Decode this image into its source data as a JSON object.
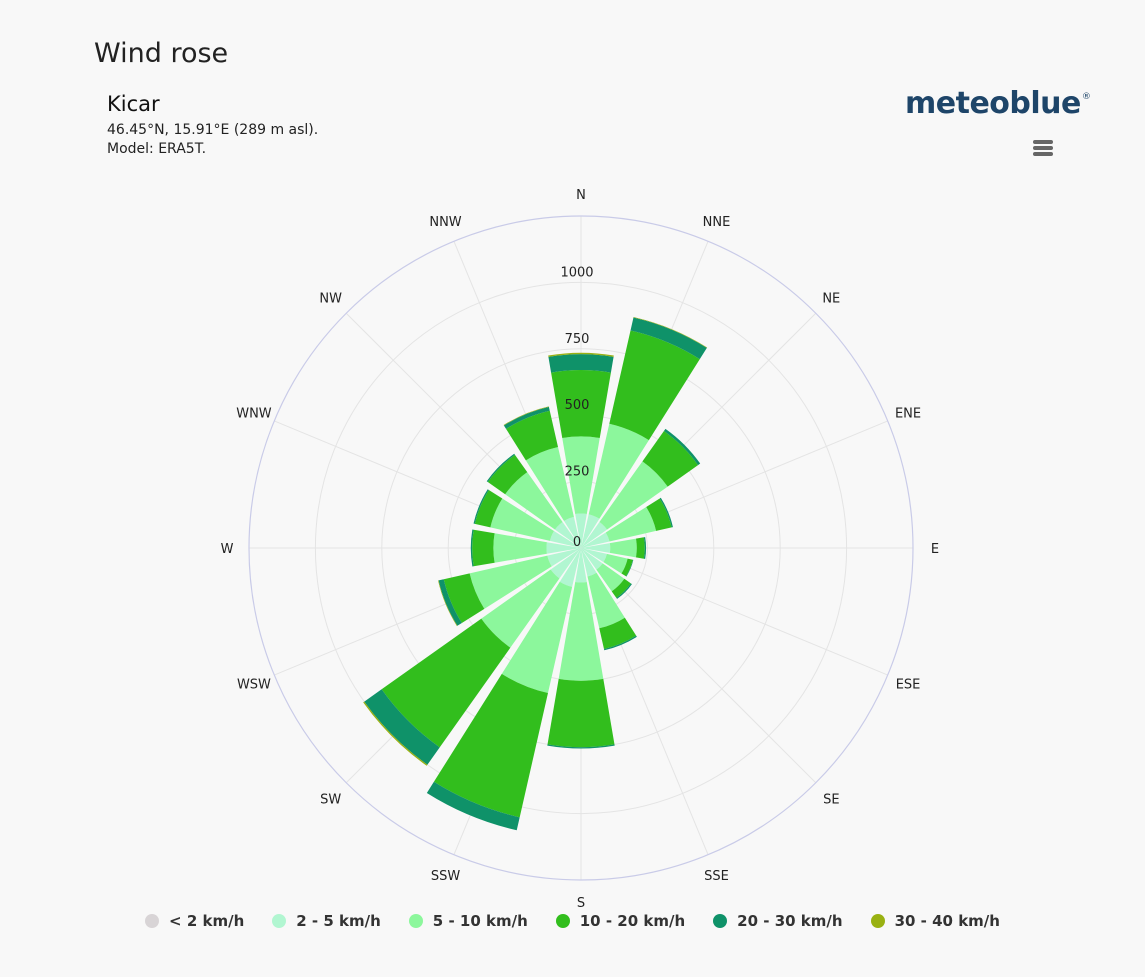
{
  "header": {
    "title": "Wind rose",
    "location": "Kicar",
    "coords": "46.45°N, 15.91°E (289 m asl).",
    "model": "Model: ERA5T.",
    "brand": "meteoblue",
    "brand_mark": "®",
    "menu_icon": "hamburger-menu-icon"
  },
  "colors": {
    "background": "#f8f8f8",
    "grid": "#e4e4e4",
    "outer_ring": "#c9cbe8",
    "brand": "#1e4569"
  },
  "chart_data": {
    "type": "polar-stacked-bar",
    "title": "Wind rose",
    "radial_axis": {
      "min": 0,
      "max": 1250,
      "ticks": [
        0,
        250,
        500,
        750,
        1000
      ],
      "grid": true
    },
    "directions": [
      "N",
      "NNE",
      "NE",
      "ENE",
      "E",
      "ESE",
      "SE",
      "SSE",
      "S",
      "SSW",
      "SW",
      "WSW",
      "W",
      "WNW",
      "NW",
      "NNW"
    ],
    "series": [
      {
        "name": "< 2 km/h",
        "color": "#d8d4d6",
        "values": [
          0,
          0,
          0,
          0,
          0,
          0,
          0,
          0,
          0,
          0,
          0,
          0,
          0,
          0,
          0,
          0
        ]
      },
      {
        "name": "2 - 5 km/h",
        "color": "#b1f6d1",
        "values": [
          130,
          130,
          120,
          110,
          110,
          100,
          100,
          110,
          130,
          150,
          140,
          130,
          130,
          120,
          120,
          120
        ]
      },
      {
        "name": "5 - 10 km/h",
        "color": "#8cf79c",
        "values": [
          290,
          350,
          280,
          180,
          100,
          80,
          100,
          200,
          370,
          410,
          320,
          300,
          200,
          230,
          230,
          270
        ]
      },
      {
        "name": "10 - 20 km/h",
        "color": "#32be1d",
        "values": [
          250,
          360,
          140,
          60,
          30,
          20,
          30,
          80,
          250,
          480,
          460,
          100,
          80,
          60,
          80,
          140
        ]
      },
      {
        "name": "20 - 30 km/h",
        "color": "#0f9269",
        "values": [
          60,
          50,
          10,
          5,
          5,
          2,
          5,
          5,
          5,
          50,
          80,
          20,
          5,
          5,
          5,
          15
        ]
      },
      {
        "name": "30 - 40 km/h",
        "color": "#99b112",
        "values": [
          5,
          2,
          0,
          0,
          0,
          0,
          0,
          0,
          0,
          0,
          5,
          2,
          0,
          0,
          0,
          2
        ]
      }
    ],
    "legend_position": "bottom"
  }
}
